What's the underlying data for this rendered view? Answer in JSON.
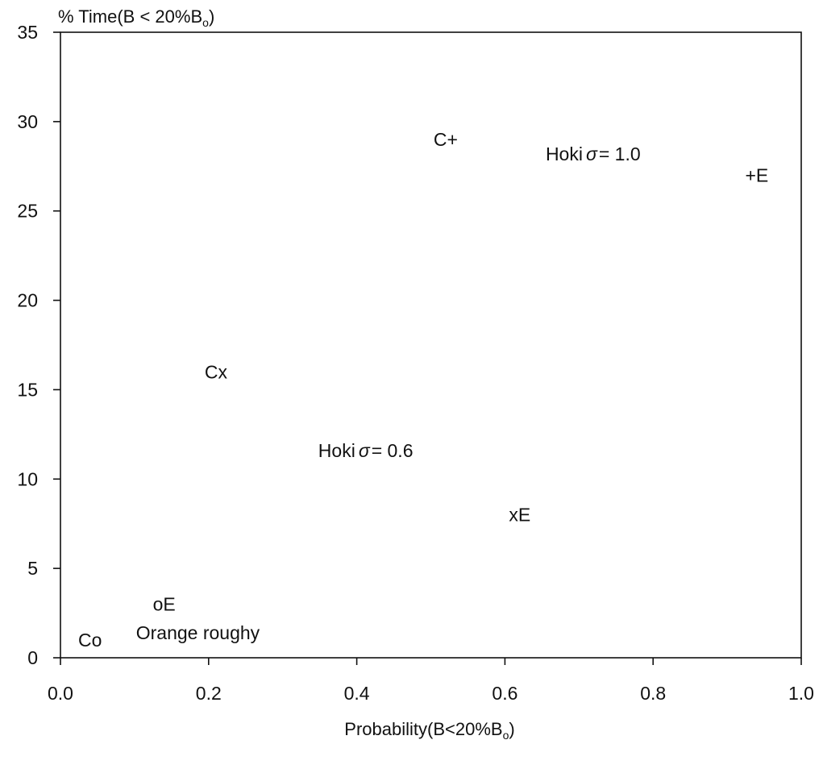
{
  "chart_data": {
    "type": "scatter",
    "title": "",
    "ylabel": "% Time(B < 20%B",
    "ylabel_sub": "o",
    "ylabel_close": ")",
    "xlabel": "Probability(B<20%B",
    "xlabel_sub": "o",
    "xlabel_close": ")",
    "xlim": [
      0.0,
      1.0
    ],
    "ylim": [
      0,
      35
    ],
    "x_ticks": [
      "0.0",
      "0.2",
      "0.4",
      "0.6",
      "0.8",
      "1.0"
    ],
    "y_ticks": [
      "0",
      "5",
      "10",
      "15",
      "20",
      "25",
      "30",
      "35"
    ],
    "grid": false,
    "legend": "none",
    "points": [
      {
        "x": 0.04,
        "y": 1,
        "label": "Co"
      },
      {
        "x": 0.14,
        "y": 3,
        "label": "oE"
      },
      {
        "x": 0.21,
        "y": 16,
        "label": "Cx"
      },
      {
        "x": 0.62,
        "y": 8,
        "label": "xE"
      },
      {
        "x": 0.52,
        "y": 29,
        "label": "C+"
      },
      {
        "x": 0.94,
        "y": 27,
        "label": "+E"
      }
    ],
    "annotations": [
      {
        "text": "Orange roughy",
        "x": 0.102,
        "y": 1.4
      },
      {
        "text": "Hoki",
        "sigma": "σ",
        "rest": "= 1.0",
        "x": 0.655,
        "y": 28.2
      },
      {
        "text": "Hoki",
        "sigma": "σ",
        "rest": "= 0.6",
        "x": 0.348,
        "y": 11.6
      }
    ]
  }
}
